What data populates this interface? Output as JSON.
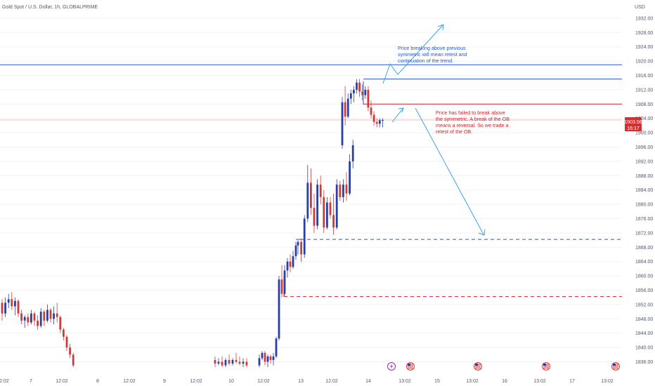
{
  "header": {
    "symbol_title": "Gold Spot / U.S. Dollar, 1h, GLOBALPRIME",
    "currency": "USD"
  },
  "price_tag": {
    "value": "1903.56",
    "countdown": "16:17"
  },
  "annotations": {
    "bullish_note": [
      "Price breaking above previous",
      "symmetric will mean retest and",
      "continuation of the trend."
    ],
    "bearish_note": [
      "Price has failed to break above",
      "the symmetric. A break of the OB",
      "means a reversal. So we trade a",
      "retest of the OB."
    ]
  },
  "colors": {
    "up": "#2a3fa6",
    "down": "#d23a3a",
    "blue_line": "#2456d8",
    "red_line": "#d2202b",
    "arrow": "#3aa3e3",
    "price_tag": "#d32f2f",
    "bg": "#ffffff",
    "grid": "#f2f3f5"
  },
  "event_icons": [
    "lightning-icon",
    "us-flag-icon",
    "us-flag-icon",
    "us-flag-icon",
    "us-flag-icon"
  ],
  "chart_data": {
    "type": "candlestick",
    "title": "Gold Spot / U.S. Dollar, 1h, GLOBALPRIME",
    "ylabel": "USD",
    "ylim": [
      1834,
      1934
    ],
    "y_ticks": [
      1836,
      1840,
      1844,
      1848,
      1852,
      1856,
      1860,
      1864,
      1868,
      1872,
      1876,
      1880,
      1884,
      1888,
      1892,
      1896,
      1900,
      1904,
      1908,
      1912,
      1916,
      1920,
      1924,
      1928,
      1932
    ],
    "x_tick_labels": [
      "12:02",
      "7",
      "12:02",
      "8",
      "12:02",
      "9",
      "12:02",
      "10",
      "12:02",
      "13",
      "12:02",
      "14",
      "13:02",
      "15",
      "13:02",
      "16",
      "13:02",
      "17",
      "13:02"
    ],
    "candles": [
      {
        "o": 1852.5,
        "h": 1853.5,
        "l": 1847.5,
        "c": 1849.5
      },
      {
        "o": 1849.5,
        "h": 1854,
        "l": 1848.5,
        "c": 1852.5
      },
      {
        "o": 1852.5,
        "h": 1855,
        "l": 1851,
        "c": 1853.5
      },
      {
        "o": 1853.5,
        "h": 1855.5,
        "l": 1850.5,
        "c": 1851.5
      },
      {
        "o": 1851.5,
        "h": 1854,
        "l": 1849,
        "c": 1853
      },
      {
        "o": 1853,
        "h": 1853.5,
        "l": 1848.5,
        "c": 1849.5
      },
      {
        "o": 1849.5,
        "h": 1850.5,
        "l": 1846.5,
        "c": 1847.5
      },
      {
        "o": 1847.5,
        "h": 1849,
        "l": 1845.5,
        "c": 1848.5
      },
      {
        "o": 1848.5,
        "h": 1849.5,
        "l": 1846,
        "c": 1847
      },
      {
        "o": 1847,
        "h": 1850.5,
        "l": 1846.5,
        "c": 1849.5
      },
      {
        "o": 1849.5,
        "h": 1850,
        "l": 1846,
        "c": 1847.5
      },
      {
        "o": 1847.5,
        "h": 1849,
        "l": 1845,
        "c": 1846
      },
      {
        "o": 1846,
        "h": 1851,
        "l": 1845.5,
        "c": 1850
      },
      {
        "o": 1850,
        "h": 1850.5,
        "l": 1846,
        "c": 1847.5
      },
      {
        "o": 1847.5,
        "h": 1852,
        "l": 1847,
        "c": 1850.5
      },
      {
        "o": 1850.5,
        "h": 1851,
        "l": 1847,
        "c": 1848
      },
      {
        "o": 1848,
        "h": 1851.5,
        "l": 1846.5,
        "c": 1849.5
      },
      {
        "o": 1849.5,
        "h": 1852.5,
        "l": 1847,
        "c": 1848.5
      },
      {
        "o": 1848.5,
        "h": 1849,
        "l": 1844,
        "c": 1845
      },
      {
        "o": 1845,
        "h": 1845.5,
        "l": 1842,
        "c": 1843
      },
      {
        "o": 1843,
        "h": 1843.5,
        "l": 1839,
        "c": 1840
      },
      {
        "o": 1840,
        "h": 1841,
        "l": 1837,
        "c": 1838
      },
      {
        "o": 1838,
        "h": 1838.5,
        "l": 1834.5,
        "c": 1835
      },
      {
        "o": 1836.5,
        "h": 1837.5,
        "l": 1834.5,
        "c": 1835.5
      },
      {
        "o": 1835.5,
        "h": 1837,
        "l": 1835,
        "c": 1836
      },
      {
        "o": 1836,
        "h": 1837.5,
        "l": 1834.5,
        "c": 1835
      },
      {
        "o": 1835,
        "h": 1837,
        "l": 1834.5,
        "c": 1836.5
      },
      {
        "o": 1836.5,
        "h": 1838,
        "l": 1835,
        "c": 1835.5
      },
      {
        "o": 1835.5,
        "h": 1837,
        "l": 1835,
        "c": 1836.5
      },
      {
        "o": 1836.5,
        "h": 1838.5,
        "l": 1835.5,
        "c": 1836
      },
      {
        "o": 1836,
        "h": 1837.5,
        "l": 1835,
        "c": 1835.5
      },
      {
        "o": 1835.5,
        "h": 1837,
        "l": 1834.5,
        "c": 1836
      },
      {
        "o": 1836,
        "h": 1837,
        "l": 1834.5,
        "c": 1835
      },
      {
        "o": 1835,
        "h": 1838,
        "l": 1834.5,
        "c": 1837
      },
      {
        "o": 1837,
        "h": 1839,
        "l": 1836.5,
        "c": 1838.5
      },
      {
        "o": 1838.5,
        "h": 1839,
        "l": 1835,
        "c": 1836
      },
      {
        "o": 1836,
        "h": 1838,
        "l": 1834.5,
        "c": 1837.5
      },
      {
        "o": 1837.5,
        "h": 1838,
        "l": 1835.5,
        "c": 1836.5
      },
      {
        "o": 1836.5,
        "h": 1838.5,
        "l": 1835,
        "c": 1837.5
      },
      {
        "o": 1837.5,
        "h": 1843,
        "l": 1837,
        "c": 1842.5
      },
      {
        "o": 1842.5,
        "h": 1860,
        "l": 1842,
        "c": 1859
      },
      {
        "o": 1859,
        "h": 1863,
        "l": 1854,
        "c": 1855
      },
      {
        "o": 1855,
        "h": 1863,
        "l": 1854.5,
        "c": 1861.5
      },
      {
        "o": 1861.5,
        "h": 1865,
        "l": 1859.5,
        "c": 1864
      },
      {
        "o": 1864,
        "h": 1866,
        "l": 1861,
        "c": 1862.5
      },
      {
        "o": 1862.5,
        "h": 1867,
        "l": 1862,
        "c": 1865.5
      },
      {
        "o": 1865.5,
        "h": 1869.5,
        "l": 1864.5,
        "c": 1868.5
      },
      {
        "o": 1868.5,
        "h": 1870,
        "l": 1866,
        "c": 1869.5
      },
      {
        "o": 1869.5,
        "h": 1870.5,
        "l": 1864,
        "c": 1866
      },
      {
        "o": 1866,
        "h": 1877,
        "l": 1865,
        "c": 1876
      },
      {
        "o": 1876,
        "h": 1891,
        "l": 1875,
        "c": 1886
      },
      {
        "o": 1886,
        "h": 1890,
        "l": 1877,
        "c": 1879
      },
      {
        "o": 1879,
        "h": 1883,
        "l": 1872,
        "c": 1874
      },
      {
        "o": 1874,
        "h": 1887,
        "l": 1873,
        "c": 1885.5
      },
      {
        "o": 1885.5,
        "h": 1888,
        "l": 1880,
        "c": 1882
      },
      {
        "o": 1882,
        "h": 1884,
        "l": 1872,
        "c": 1873.5
      },
      {
        "o": 1873.5,
        "h": 1882,
        "l": 1873,
        "c": 1880.5
      },
      {
        "o": 1880.5,
        "h": 1882,
        "l": 1876,
        "c": 1877
      },
      {
        "o": 1877,
        "h": 1883,
        "l": 1871.5,
        "c": 1873.5
      },
      {
        "o": 1873.5,
        "h": 1887,
        "l": 1873,
        "c": 1885.5
      },
      {
        "o": 1885.5,
        "h": 1886.5,
        "l": 1881,
        "c": 1882
      },
      {
        "o": 1882,
        "h": 1887,
        "l": 1880.5,
        "c": 1885.5
      },
      {
        "o": 1885.5,
        "h": 1889,
        "l": 1881,
        "c": 1883
      },
      {
        "o": 1883,
        "h": 1894,
        "l": 1882.5,
        "c": 1892
      },
      {
        "o": 1892,
        "h": 1898,
        "l": 1890,
        "c": 1896.5
      },
      {
        "o": 1896.5,
        "h": 1910,
        "l": 1895.5,
        "c": 1908.5
      },
      {
        "o": 1908.5,
        "h": 1913,
        "l": 1902,
        "c": 1904.5
      },
      {
        "o": 1904.5,
        "h": 1911,
        "l": 1904,
        "c": 1909.5
      },
      {
        "o": 1909.5,
        "h": 1912,
        "l": 1908,
        "c": 1911
      },
      {
        "o": 1911,
        "h": 1913,
        "l": 1908.5,
        "c": 1912
      },
      {
        "o": 1912,
        "h": 1915,
        "l": 1911,
        "c": 1914
      },
      {
        "o": 1914,
        "h": 1915,
        "l": 1910,
        "c": 1911.5
      },
      {
        "o": 1911.5,
        "h": 1913.5,
        "l": 1909,
        "c": 1910.5
      },
      {
        "o": 1910.5,
        "h": 1913,
        "l": 1909.5,
        "c": 1912
      },
      {
        "o": 1912,
        "h": 1913,
        "l": 1906,
        "c": 1907
      },
      {
        "o": 1907,
        "h": 1909,
        "l": 1904,
        "c": 1905
      },
      {
        "o": 1905,
        "h": 1906,
        "l": 1902,
        "c": 1903
      },
      {
        "o": 1903,
        "h": 1904,
        "l": 1901.5,
        "c": 1902.5
      },
      {
        "o": 1902.5,
        "h": 1904,
        "l": 1901.5,
        "c": 1903.5
      },
      {
        "o": 1903.5,
        "h": 1904,
        "l": 1901.5,
        "c": 1903.56
      }
    ],
    "horizontal_levels": [
      {
        "value": 1919,
        "style": "solid",
        "color": "blue"
      },
      {
        "value": 1915,
        "style": "solid",
        "color": "blue"
      },
      {
        "value": 1908,
        "style": "solid",
        "color": "red"
      },
      {
        "value": 1903.56,
        "style": "solid",
        "color": "light-red"
      },
      {
        "value": 1870.2,
        "style": "dashed",
        "color": "blue"
      },
      {
        "value": 1854.2,
        "style": "dashed",
        "color": "red"
      }
    ],
    "grid": true
  }
}
